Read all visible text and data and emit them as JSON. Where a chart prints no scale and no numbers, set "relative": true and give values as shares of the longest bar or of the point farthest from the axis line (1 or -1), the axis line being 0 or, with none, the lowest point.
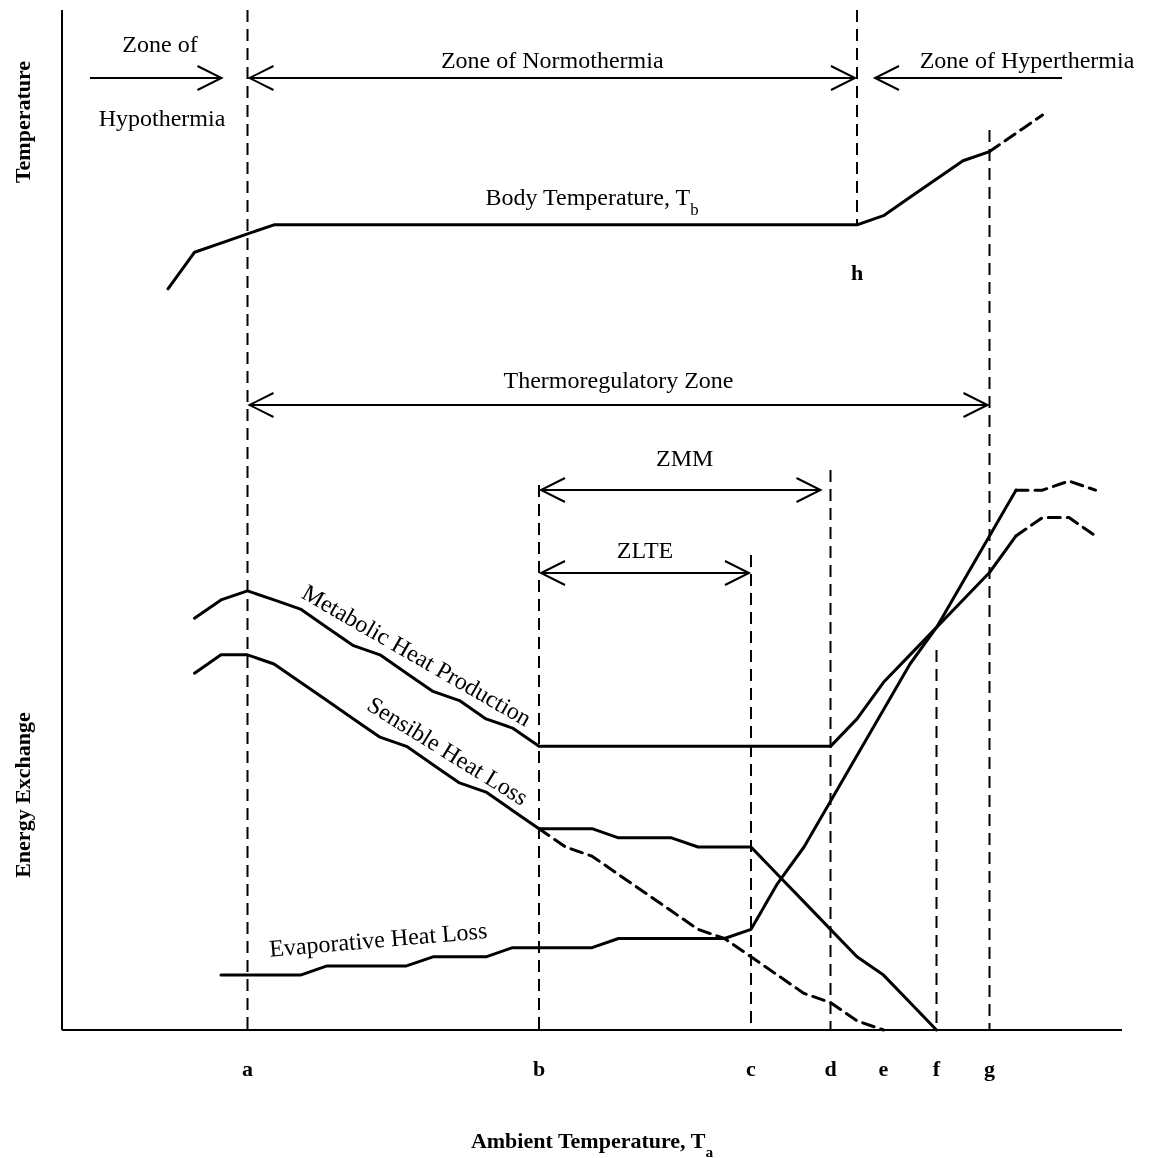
{
  "chart_data": {
    "type": "line",
    "relative": true,
    "ylabel": "Energy Exchange",
    "xlabel": "Ambient Temperature, T$_{a}$",
    "categories": [
      null,
      null,
      null,
      null,
      null,
      null,
      null,
      "a",
      null,
      null,
      null,
      null,
      null,
      null,
      null,
      null,
      null,
      null,
      "b",
      null,
      null,
      null,
      null,
      null,
      null,
      null,
      "c",
      null,
      null,
      "d",
      null,
      "e",
      null,
      "f",
      null,
      "g",
      null,
      null,
      null,
      null,
      null
    ],
    "series": [
      {
        "name": "Body Temperature, T$_{b}$",
        "color": "#000000",
        "values": [
          null,
          null,
          null,
          null,
          0.81,
          0.85,
          0.86,
          0.87,
          0.88,
          0.88,
          0.88,
          0.88,
          0.88,
          0.88,
          0.88,
          0.88,
          0.88,
          0.88,
          0.88,
          0.88,
          0.88,
          0.88,
          0.88,
          0.88,
          0.88,
          0.88,
          0.88,
          0.88,
          0.88,
          0.88,
          0.88,
          0.89,
          0.91,
          0.93,
          0.95,
          0.96,
          null,
          null,
          null,
          null,
          null
        ]
      },
      {
        "color": "#000000",
        "line_style": "dashed",
        "values": [
          null,
          null,
          null,
          null,
          null,
          null,
          null,
          null,
          null,
          null,
          null,
          null,
          null,
          null,
          null,
          null,
          null,
          null,
          null,
          null,
          null,
          null,
          null,
          null,
          null,
          null,
          null,
          null,
          null,
          null,
          null,
          null,
          null,
          null,
          null,
          0.96,
          0.98,
          1.0,
          null,
          null,
          null
        ]
      },
      {
        "name": "Metabolic Heat Production",
        "color": "#000000",
        "values": [
          null,
          null,
          null,
          null,
          null,
          0.45,
          0.47,
          0.48,
          0.47,
          0.46,
          0.44,
          0.42,
          0.41,
          0.39,
          0.37,
          0.36,
          0.34,
          0.33,
          0.31,
          0.31,
          0.31,
          0.31,
          0.31,
          0.31,
          0.31,
          0.31,
          0.31,
          0.31,
          0.31,
          0.31,
          0.34,
          0.38,
          0.41,
          0.44,
          0.47,
          0.5,
          0.54,
          null,
          null,
          null,
          null
        ]
      },
      {
        "color": "#000000",
        "line_style": "dashed",
        "values": [
          null,
          null,
          null,
          null,
          null,
          null,
          null,
          null,
          null,
          null,
          null,
          null,
          null,
          null,
          null,
          null,
          null,
          null,
          null,
          null,
          null,
          null,
          null,
          null,
          null,
          null,
          null,
          null,
          null,
          null,
          null,
          null,
          null,
          null,
          null,
          null,
          0.54,
          0.56,
          0.56,
          0.54,
          null
        ]
      },
      {
        "name": "Sensible Heat Loss",
        "color": "#000000",
        "values": [
          null,
          null,
          null,
          null,
          null,
          0.39,
          0.41,
          0.41,
          0.4,
          0.38,
          0.36,
          0.34,
          0.32,
          0.31,
          0.29,
          0.27,
          0.26,
          0.24,
          0.22,
          0.22,
          0.22,
          0.21,
          0.21,
          0.21,
          0.2,
          0.2,
          0.2,
          0.17,
          0.14,
          0.11,
          0.08,
          0.06,
          0.03,
          0,
          null,
          null,
          null,
          null,
          null,
          null,
          null
        ]
      },
      {
        "color": "#000000",
        "line_style": "dashed",
        "values": [
          null,
          null,
          null,
          null,
          null,
          null,
          null,
          null,
          null,
          null,
          null,
          null,
          null,
          null,
          null,
          null,
          null,
          null,
          0.22,
          0.2,
          0.19,
          0.17,
          0.15,
          0.13,
          0.11,
          0.1,
          0.08,
          0.06,
          0.04,
          0.03,
          0.01,
          0,
          null,
          null,
          null,
          null,
          null,
          null,
          null,
          null,
          null
        ]
      },
      {
        "name": "Evaporative Heat Loss",
        "color": "#000000",
        "values": [
          null,
          null,
          null,
          null,
          null,
          null,
          0.06,
          0.06,
          0.06,
          0.06,
          0.07,
          0.07,
          0.07,
          0.07,
          0.08,
          0.08,
          0.08,
          0.09,
          0.09,
          0.09,
          0.09,
          0.1,
          0.1,
          0.1,
          0.1,
          0.1,
          0.11,
          0.16,
          0.2,
          0.25,
          0.3,
          0.35,
          0.4,
          0.44,
          0.49,
          0.54,
          0.59,
          null,
          null,
          null,
          null
        ]
      },
      {
        "color": "#000000",
        "line_style": "dashed",
        "values": [
          null,
          null,
          null,
          null,
          null,
          null,
          null,
          null,
          null,
          null,
          null,
          null,
          null,
          null,
          null,
          null,
          null,
          null,
          null,
          null,
          null,
          null,
          null,
          null,
          null,
          null,
          null,
          null,
          null,
          null,
          null,
          null,
          null,
          null,
          null,
          null,
          0.59,
          0.59,
          0.6,
          0.59,
          null
        ]
      }
    ],
    "ref_lines": [
      {
        "axis": "x",
        "value": "a"
      },
      {
        "axis": "x",
        "value": "b"
      },
      {
        "axis": "x",
        "value": "c"
      },
      {
        "axis": "x",
        "value": "d"
      },
      {
        "axis": "x",
        "value": "f"
      },
      {
        "axis": "x",
        "value": "g"
      }
    ],
    "annotations": [
      "Temperature",
      "Zone of Hypothermia",
      "Zone of Normothermia",
      "Zone of Hyperthermia",
      "h",
      "Thermoregulatory Zone",
      "ZMM",
      "ZLTE"
    ]
  }
}
